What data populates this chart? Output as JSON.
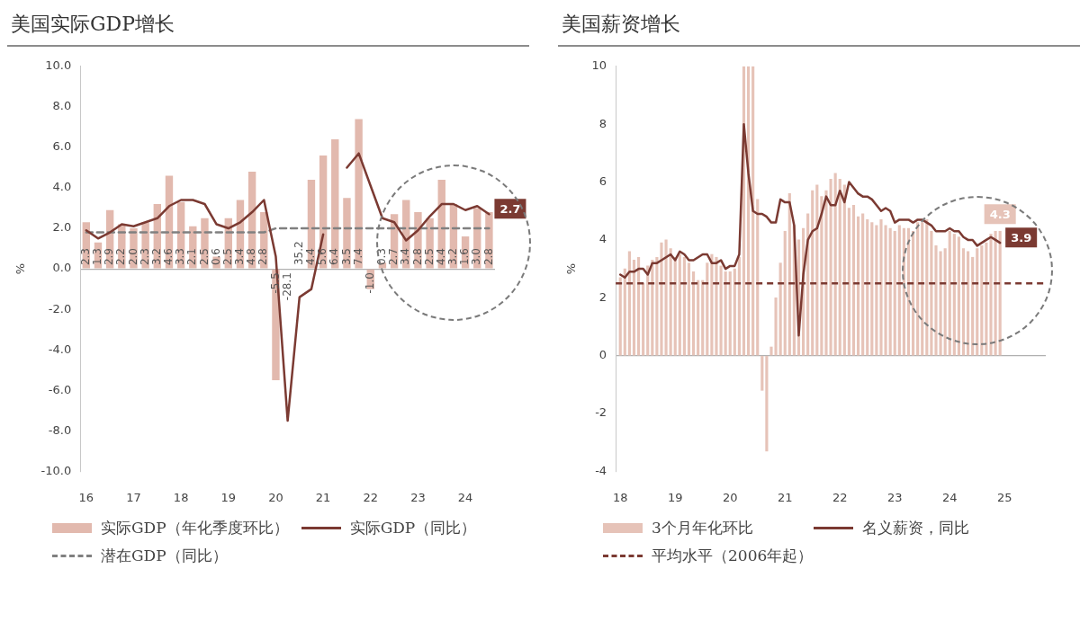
{
  "chart_data": [
    {
      "type": "bar",
      "title": "美国实际GDP增长",
      "ylabel": "%",
      "legend": "bottom",
      "marker": "none",
      "categories": [
        "16",
        null,
        null,
        null,
        "17",
        null,
        null,
        null,
        "18",
        null,
        null,
        null,
        "19",
        null,
        null,
        null,
        "20",
        null,
        null,
        null,
        "21",
        null,
        null,
        null,
        "22",
        null,
        null,
        null,
        "23",
        null,
        null,
        null,
        "24",
        null,
        null
      ],
      "ylim": [
        -10,
        10
      ],
      "yticks": [
        {
          "value": -10,
          "label": "-10.0"
        },
        {
          "value": -8,
          "label": "-8.0"
        },
        {
          "value": -6,
          "label": "-6.0"
        },
        {
          "value": -4,
          "label": "-4.0"
        },
        {
          "value": -2,
          "label": "-2.0"
        },
        {
          "value": 0,
          "label": "0.0"
        },
        {
          "value": 2,
          "label": "2.0"
        },
        {
          "value": 4,
          "label": "4.0"
        },
        {
          "value": 6,
          "label": "6.0"
        },
        {
          "value": 8,
          "label": "8.0"
        },
        {
          "value": 10,
          "label": "10.0"
        }
      ],
      "series": [
        {
          "name": "实际GDP（年化季度环比）",
          "color": "#e2b9ae",
          "values": [
            2.3,
            1.3,
            2.9,
            2.2,
            2.0,
            2.3,
            3.2,
            4.6,
            3.3,
            2.1,
            2.5,
            0.6,
            2.5,
            3.4,
            4.8,
            2.8,
            -5.5,
            null,
            null,
            4.4,
            5.6,
            6.4,
            3.5,
            7.4,
            -1.0,
            0.3,
            2.7,
            3.4,
            2.8,
            2.5,
            4.4,
            3.2,
            1.6,
            3.0,
            2.8
          ],
          "value_labels": [
            "2.3",
            "1.3",
            "2.9",
            "2.2",
            "2.0",
            "2.3",
            "3.2",
            "4.6",
            "3.3",
            "2.1",
            "2.5",
            "0.6",
            "2.5",
            "3.4",
            "4.8",
            "2.8",
            "-5.5",
            "-28.1",
            "35.2",
            "4.4",
            "5.6",
            "6.4",
            "3.5",
            "7.4",
            "-1.0",
            "0.3",
            "2.7",
            "3.4",
            "2.8",
            "2.5",
            "4.4",
            "3.2",
            "1.6",
            "3.0",
            "2.8"
          ]
        },
        {
          "type": "line",
          "name": "实际GDP（同比）",
          "color": "#7b3a32",
          "values": [
            1.9,
            1.5,
            1.8,
            2.2,
            2.1,
            2.3,
            2.5,
            3.1,
            3.4,
            3.4,
            3.2,
            2.2,
            2.0,
            2.3,
            2.8,
            3.4,
            0.6,
            -7.5,
            -1.4,
            -1.0,
            1.7,
            null,
            5.0,
            5.7,
            4.1,
            2.5,
            2.3,
            1.4,
            1.9,
            2.6,
            3.2,
            3.2,
            2.9,
            3.1,
            2.7
          ],
          "value_labels": [
            null,
            null,
            null,
            null,
            null,
            null,
            null,
            null,
            null,
            null,
            null,
            null,
            null,
            null,
            null,
            null,
            null,
            null,
            null,
            null,
            null,
            null,
            null,
            null,
            null,
            null,
            null,
            null,
            null,
            null,
            null,
            null,
            null,
            null,
            "2.7"
          ]
        },
        {
          "type": "line",
          "name": "潜在GDP（同比）",
          "color": "#808080",
          "line_style": "dashed",
          "values": [
            1.8,
            1.8,
            1.8,
            1.8,
            1.8,
            1.8,
            1.8,
            1.8,
            1.8,
            1.8,
            1.8,
            1.8,
            1.8,
            1.8,
            1.8,
            1.8,
            2.0,
            2.0,
            2.0,
            2.0,
            2.0,
            2.0,
            2.0,
            2.0,
            2.0,
            2.0,
            2.0,
            2.0,
            2.0,
            2.0,
            2.0,
            2.0,
            2.0,
            2.0,
            2.0
          ]
        }
      ]
    },
    {
      "type": "bar",
      "title": "美国薪资增长",
      "ylabel": "%",
      "legend": "bottom",
      "marker": "none",
      "x": [
        "2018-01",
        "2018-02",
        "2018-03",
        "2018-04",
        "2018-05",
        "2018-06",
        "2018-07",
        "2018-08",
        "2018-09",
        "2018-10",
        "2018-11",
        "2018-12",
        "2019-01",
        "2019-02",
        "2019-03",
        "2019-04",
        "2019-05",
        "2019-06",
        "2019-07",
        "2019-08",
        "2019-09",
        "2019-10",
        "2019-11",
        "2019-12",
        "2020-01",
        "2020-02",
        "2020-03",
        "2020-04",
        "2020-05",
        "2020-06",
        "2020-07",
        "2020-08",
        "2020-09",
        "2020-10",
        "2020-11",
        "2020-12",
        "2021-01",
        "2021-02",
        "2021-03",
        "2021-04",
        "2021-05",
        "2021-06",
        "2021-07",
        "2021-08",
        "2021-09",
        "2021-10",
        "2021-11",
        "2021-12",
        "2022-01",
        "2022-02",
        "2022-03",
        "2022-04",
        "2022-05",
        "2022-06",
        "2022-07",
        "2022-08",
        "2022-09",
        "2022-10",
        "2022-11",
        "2022-12",
        "2023-01",
        "2023-02",
        "2023-03",
        "2023-04",
        "2023-05",
        "2023-06",
        "2023-07",
        "2023-08",
        "2023-09",
        "2023-10",
        "2023-11",
        "2023-12",
        "2024-01",
        "2024-02",
        "2024-03",
        "2024-04",
        "2024-05",
        "2024-06",
        "2024-07",
        "2024-08",
        "2024-09",
        "2024-10",
        "2024-11",
        "2024-12"
      ],
      "xlim": [
        "2017-12",
        "2025-10"
      ],
      "xticks": [
        {
          "value": "2018-01",
          "label": "18"
        },
        {
          "value": "2019-01",
          "label": "19"
        },
        {
          "value": "2020-01",
          "label": "20"
        },
        {
          "value": "2021-01",
          "label": "21"
        },
        {
          "value": "2022-01",
          "label": "22"
        },
        {
          "value": "2023-01",
          "label": "23"
        },
        {
          "value": "2024-01",
          "label": "24"
        },
        {
          "value": "2025-01",
          "label": "25"
        }
      ],
      "ylim": [
        -4,
        10
      ],
      "yticks": [
        -4,
        -2,
        0,
        2,
        4,
        6,
        8,
        10
      ],
      "ref_lines": [
        {
          "axis": "y",
          "value": 2.5,
          "label": "平均水平（2006年起）",
          "color": "#7b3a32",
          "line_style": "dashed"
        }
      ],
      "series": [
        {
          "name": "3个月年化环比",
          "color": "#e6c3b8",
          "values": [
            2.7,
            3.0,
            3.6,
            3.3,
            3.4,
            2.5,
            3.1,
            3.3,
            3.4,
            3.9,
            4.0,
            3.7,
            3.4,
            3.5,
            3.4,
            3.2,
            2.9,
            2.6,
            2.6,
            3.2,
            3.5,
            3.4,
            3.1,
            2.9,
            2.9,
            3.0,
            3.4,
            10,
            10,
            10,
            5.4,
            -1.2,
            -3.3,
            0.3,
            2.0,
            3.2,
            4.3,
            5.6,
            4.5,
            4.0,
            4.4,
            4.9,
            5.7,
            5.9,
            5.5,
            5.7,
            6.1,
            6.3,
            6.1,
            5.9,
            5.1,
            5.2,
            4.8,
            4.9,
            4.7,
            4.6,
            4.5,
            4.7,
            4.5,
            4.4,
            4.3,
            4.5,
            4.4,
            4.4,
            4.3,
            4.6,
            4.6,
            4.7,
            4.3,
            3.8,
            3.6,
            3.7,
            4.3,
            4.2,
            4.1,
            3.7,
            3.6,
            3.4,
            3.7,
            3.8,
            3.9,
            4.2,
            4.3,
            4.3
          ],
          "value_labels": [
            null,
            null,
            null,
            null,
            null,
            null,
            null,
            null,
            null,
            null,
            null,
            null,
            null,
            null,
            null,
            null,
            null,
            null,
            null,
            null,
            null,
            null,
            null,
            null,
            null,
            null,
            null,
            null,
            null,
            null,
            null,
            null,
            null,
            null,
            null,
            null,
            null,
            null,
            null,
            null,
            null,
            null,
            null,
            null,
            null,
            null,
            null,
            null,
            null,
            null,
            null,
            null,
            null,
            null,
            null,
            null,
            null,
            null,
            null,
            null,
            null,
            null,
            null,
            null,
            null,
            null,
            null,
            null,
            null,
            null,
            null,
            null,
            null,
            null,
            null,
            null,
            null,
            null,
            null,
            null,
            null,
            null,
            null,
            "4.3"
          ]
        },
        {
          "type": "line",
          "name": "名义薪资，同比",
          "color": "#7b3a32",
          "values": [
            2.8,
            2.7,
            2.9,
            2.9,
            3.0,
            3.0,
            2.8,
            3.2,
            3.2,
            3.3,
            3.4,
            3.5,
            3.3,
            3.6,
            3.5,
            3.3,
            3.3,
            3.4,
            3.5,
            3.5,
            3.2,
            3.2,
            3.3,
            3.0,
            3.1,
            3.1,
            3.5,
            8.0,
            6.3,
            5.0,
            4.9,
            4.9,
            4.8,
            4.6,
            4.6,
            5.4,
            5.3,
            5.3,
            4.5,
            0.7,
            2.8,
            4.0,
            4.3,
            4.4,
            4.9,
            5.5,
            5.2,
            5.2,
            5.7,
            5.3,
            6.0,
            5.8,
            5.6,
            5.5,
            5.5,
            5.4,
            5.2,
            5.0,
            5.1,
            5.0,
            4.6,
            4.7,
            4.7,
            4.7,
            4.6,
            4.7,
            4.7,
            4.6,
            4.5,
            4.3,
            4.3,
            4.3,
            4.4,
            4.3,
            4.3,
            4.1,
            4.0,
            4.0,
            3.8,
            3.9,
            4.0,
            4.1,
            4.0,
            3.9
          ],
          "value_labels": [
            null,
            null,
            null,
            null,
            null,
            null,
            null,
            null,
            null,
            null,
            null,
            null,
            null,
            null,
            null,
            null,
            null,
            null,
            null,
            null,
            null,
            null,
            null,
            null,
            null,
            null,
            null,
            null,
            null,
            null,
            null,
            null,
            null,
            null,
            null,
            null,
            null,
            null,
            null,
            null,
            null,
            null,
            null,
            null,
            null,
            null,
            null,
            null,
            null,
            null,
            null,
            null,
            null,
            null,
            null,
            null,
            null,
            null,
            null,
            null,
            null,
            null,
            null,
            null,
            null,
            null,
            null,
            null,
            null,
            null,
            null,
            null,
            null,
            null,
            null,
            null,
            null,
            null,
            null,
            null,
            null,
            null,
            null,
            "3.9"
          ]
        }
      ]
    }
  ]
}
